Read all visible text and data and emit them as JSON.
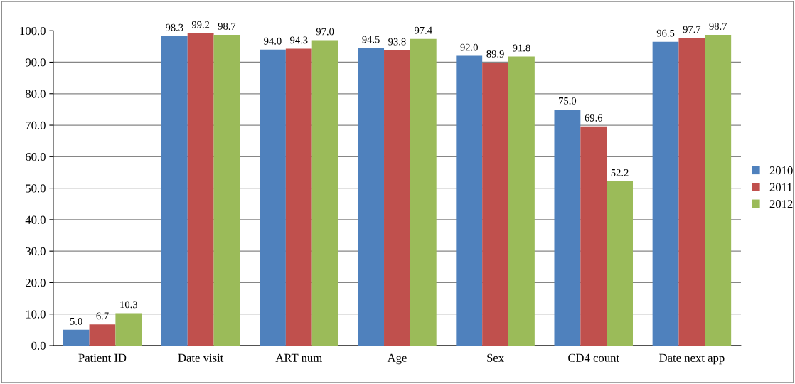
{
  "chart_data": {
    "type": "bar",
    "categories": [
      "Patient ID",
      "Date visit",
      "ART num",
      "Age",
      "Sex",
      "CD4 count",
      "Date next app"
    ],
    "series": [
      {
        "name": "2010",
        "color": "#4f81bd",
        "values": [
          5.0,
          98.3,
          94.0,
          94.5,
          92.0,
          75.0,
          96.5
        ],
        "value_labels": [
          "5.0",
          "98.3",
          "94.0",
          "94.5",
          "92.0",
          "75.0",
          "96.5"
        ]
      },
      {
        "name": "2011",
        "color": "#c0504d",
        "values": [
          6.7,
          99.2,
          94.3,
          93.8,
          89.9,
          69.6,
          97.7
        ],
        "value_labels": [
          "6.7",
          "99.2",
          "94.3",
          "93.8",
          "89.9",
          "69.6",
          "97.7"
        ]
      },
      {
        "name": "2012",
        "color": "#9bbb59",
        "values": [
          10.3,
          98.7,
          97.0,
          97.4,
          91.8,
          52.2,
          98.7
        ],
        "value_labels": [
          "10.3",
          "98.7",
          "97.0",
          "97.4",
          "91.8",
          "52.2",
          "98.7"
        ]
      }
    ],
    "ylim": [
      0,
      100
    ],
    "yticks": [
      {
        "value": 0,
        "label": "0.0"
      },
      {
        "value": 10,
        "label": "10.0"
      },
      {
        "value": 20,
        "label": "20.0"
      },
      {
        "value": 30,
        "label": "30.0"
      },
      {
        "value": 40,
        "label": "40.0"
      },
      {
        "value": 50,
        "label": "50.0"
      },
      {
        "value": 60,
        "label": "60.0"
      },
      {
        "value": 70,
        "label": "70.0"
      },
      {
        "value": 80,
        "label": "80.0"
      },
      {
        "value": 90,
        "label": "90.0"
      },
      {
        "value": 100,
        "label": "100.0"
      }
    ],
    "grid": "y",
    "legend": "right"
  }
}
